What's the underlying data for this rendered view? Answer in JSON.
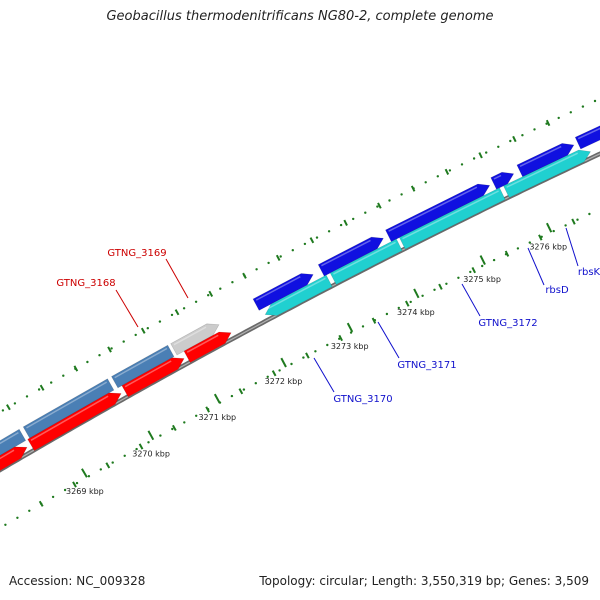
{
  "title": "Geobacillus thermodenitrificans NG80-2, complete genome",
  "footer": {
    "accession": "Accession: NC_009328",
    "summary": "Topology: circular; Length: 3,550,319 bp; Genes: 3,509"
  },
  "colors": {
    "backbone": "#808080",
    "tick": "#1f7a1f",
    "steelblue": "#4a7fb5",
    "red": "#ff0000",
    "gray": "#cccccc",
    "blue": "#1010e0",
    "cyan": "#20d0d0",
    "label_red": "#cc0000",
    "label_blue": "#1010cc"
  },
  "ticks": [
    {
      "label": "3269 kbp",
      "kbp": 3269
    },
    {
      "label": "3270 kbp",
      "kbp": 3270
    },
    {
      "label": "3271 kbp",
      "kbp": 3271
    },
    {
      "label": "3272 kbp",
      "kbp": 3272
    },
    {
      "label": "3273 kbp",
      "kbp": 3273
    },
    {
      "label": "3274 kbp",
      "kbp": 3274
    },
    {
      "label": "3275 kbp",
      "kbp": 3275
    },
    {
      "label": "3276 kbp",
      "kbp": 3276
    }
  ],
  "genes": [
    {
      "label": "GTNG_3168",
      "color": "label_red"
    },
    {
      "label": "GTNG_3169",
      "color": "label_red"
    },
    {
      "label": "GTNG_3170",
      "color": "label_blue"
    },
    {
      "label": "GTNG_3171",
      "color": "label_blue"
    },
    {
      "label": "GTNG_3172",
      "color": "label_blue"
    },
    {
      "label": "rbsD",
      "color": "label_blue"
    },
    {
      "label": "rbsK",
      "color": "label_blue"
    }
  ]
}
